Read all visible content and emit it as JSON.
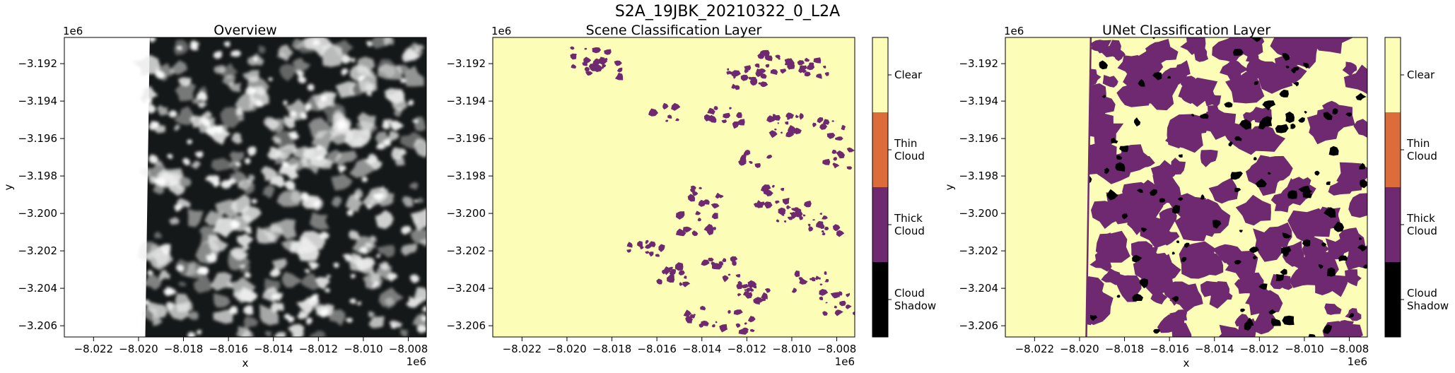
{
  "figure": {
    "suptitle": "S2A_19JBK_20210322_0_L2A"
  },
  "colors": {
    "clear": "#fcfdb7",
    "thin_cloud": "#dc6d3a",
    "thick_cloud": "#6e2970",
    "cloud_shadow": "#000000",
    "overview_bg": "#151818",
    "cloud_white": "#ececec"
  },
  "chart_data": [
    {
      "type": "heatmap",
      "title": "Overview",
      "xlabel": "x",
      "ylabel": "y",
      "x_offset_label": "1e6",
      "y_offset_label": "1e6",
      "xlim": [
        -8.0233,
        -8.0072
      ],
      "ylim": [
        -3.2066,
        -3.1906
      ],
      "xticks": [
        -8.022,
        -8.02,
        -8.018,
        -8.016,
        -8.014,
        -8.012,
        -8.01,
        -8.008
      ],
      "xtick_labels": [
        "−8.022",
        "−8.020",
        "−8.018",
        "−8.016",
        "−8.014",
        "−8.012",
        "−8.010",
        "−8.008"
      ],
      "yticks": [
        -3.192,
        -3.194,
        -3.196,
        -3.198,
        -3.2,
        -3.202,
        -3.204,
        -3.206
      ],
      "ytick_labels": [
        "−3.192",
        "−3.194",
        "−3.196",
        "−3.198",
        "−3.200",
        "−3.202",
        "−3.204",
        "−3.206"
      ],
      "nodata_edge_x": [
        -8.0195,
        -8.0197
      ]
    },
    {
      "type": "heatmap",
      "title": "Scene Classification Layer",
      "xlabel": "",
      "ylabel": "",
      "x_offset_label": "1e6",
      "y_offset_label": "1e6",
      "xlim": [
        -8.0233,
        -8.0072
      ],
      "ylim": [
        -3.2066,
        -3.1906
      ],
      "xticks": [
        -8.022,
        -8.02,
        -8.018,
        -8.016,
        -8.014,
        -8.012,
        -8.01,
        -8.008
      ],
      "xtick_labels": [
        "−8.022",
        "−8.020",
        "−8.018",
        "−8.016",
        "−8.014",
        "−8.012",
        "−8.010",
        "−8.008"
      ],
      "yticks": [
        -3.192,
        -3.194,
        -3.196,
        -3.198,
        -3.2,
        -3.202,
        -3.204,
        -3.206
      ],
      "ytick_labels": [
        "−3.192",
        "−3.194",
        "−3.196",
        "−3.198",
        "−3.200",
        "−3.202",
        "−3.204",
        "−3.206"
      ],
      "classes": [
        "Clear",
        "Thin Cloud",
        "Thick Cloud",
        "Cloud Shadow"
      ],
      "colorbar_labels": [
        [
          "Clear"
        ],
        [
          "Thin",
          "Cloud"
        ],
        [
          "Thick",
          "Cloud"
        ],
        [
          "Cloud",
          "Shadow"
        ]
      ]
    },
    {
      "type": "heatmap",
      "title": "UNet Classification Layer",
      "xlabel": "x",
      "ylabel": "y",
      "x_offset_label": "1e6",
      "y_offset_label": "1e6",
      "xlim": [
        -8.0233,
        -8.0072
      ],
      "ylim": [
        -3.2066,
        -3.1906
      ],
      "xticks": [
        -8.022,
        -8.02,
        -8.018,
        -8.016,
        -8.014,
        -8.012,
        -8.01,
        -8.008
      ],
      "xtick_labels": [
        "−8.022",
        "−8.020",
        "−8.018",
        "−8.016",
        "−8.014",
        "−8.012",
        "−8.010",
        "−8.008"
      ],
      "yticks": [
        -3.192,
        -3.194,
        -3.196,
        -3.198,
        -3.2,
        -3.202,
        -3.204,
        -3.206
      ],
      "ytick_labels": [
        "−3.192",
        "−3.194",
        "−3.196",
        "−3.198",
        "−3.200",
        "−3.202",
        "−3.204",
        "−3.206"
      ],
      "classes": [
        "Clear",
        "Thin Cloud",
        "Thick Cloud",
        "Cloud Shadow"
      ],
      "colorbar_labels": [
        [
          "Clear"
        ],
        [
          "Thin",
          "Cloud"
        ],
        [
          "Thick",
          "Cloud"
        ],
        [
          "Cloud",
          "Shadow"
        ]
      ],
      "nodata_edge_x": [
        -8.0195,
        -8.0197
      ]
    }
  ]
}
